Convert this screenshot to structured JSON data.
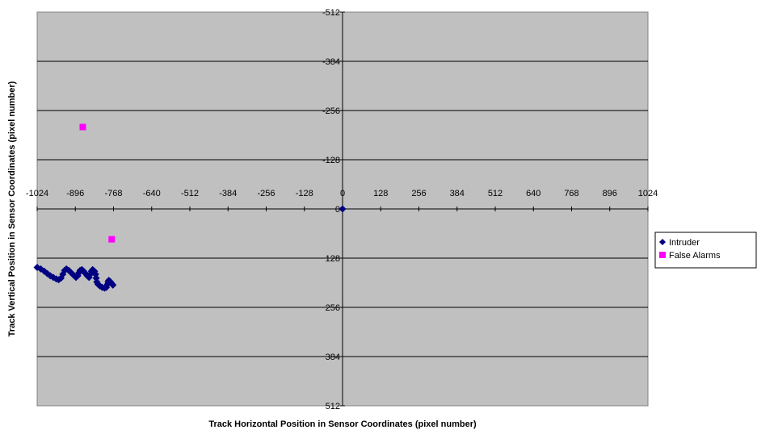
{
  "chart_data": {
    "type": "scatter",
    "xlabel": "Track Horizontal Position in Sensor Coordinates (pixel number)",
    "ylabel": "Track Vertical Position in Sensor Coordinates (pixel number)",
    "xlim": [
      -1024,
      1024
    ],
    "ylim": [
      512,
      -512
    ],
    "y_axis_reversed": true,
    "x_ticks": [
      -1024,
      -896,
      -768,
      -640,
      -512,
      -384,
      -256,
      -128,
      0,
      128,
      256,
      384,
      512,
      640,
      768,
      896,
      1024
    ],
    "y_ticks": [
      -512,
      -384,
      -256,
      -128,
      0,
      128,
      256,
      384,
      512
    ],
    "grid": "horizontal",
    "legend": "right",
    "plot_background": "#c0c0c0",
    "series": [
      {
        "name": "Intruder",
        "marker": "diamond",
        "color": "#000080",
        "points": [
          [
            0,
            0
          ],
          [
            -1024,
            152
          ],
          [
            -1012,
            156
          ],
          [
            -1000,
            162
          ],
          [
            -990,
            168
          ],
          [
            -980,
            174
          ],
          [
            -970,
            178
          ],
          [
            -960,
            182
          ],
          [
            -952,
            184
          ],
          [
            -944,
            180
          ],
          [
            -938,
            170
          ],
          [
            -932,
            160
          ],
          [
            -926,
            156
          ],
          [
            -918,
            160
          ],
          [
            -910,
            166
          ],
          [
            -902,
            172
          ],
          [
            -894,
            178
          ],
          [
            -888,
            174
          ],
          [
            -884,
            166
          ],
          [
            -880,
            160
          ],
          [
            -874,
            158
          ],
          [
            -868,
            162
          ],
          [
            -862,
            168
          ],
          [
            -856,
            174
          ],
          [
            -850,
            178
          ],
          [
            -846,
            170
          ],
          [
            -842,
            162
          ],
          [
            -838,
            158
          ],
          [
            -832,
            162
          ],
          [
            -828,
            170
          ],
          [
            -826,
            180
          ],
          [
            -824,
            190
          ],
          [
            -820,
            196
          ],
          [
            -814,
            200
          ],
          [
            -806,
            204
          ],
          [
            -798,
            206
          ],
          [
            -792,
            204
          ],
          [
            -788,
            196
          ],
          [
            -786,
            190
          ],
          [
            -784,
            186
          ],
          [
            -780,
            188
          ],
          [
            -776,
            192
          ],
          [
            -772,
            196
          ],
          [
            -770,
            198
          ]
        ]
      },
      {
        "name": "False Alarms",
        "marker": "square",
        "color": "#ff00ff",
        "points": [
          [
            -871,
            -213
          ],
          [
            -774,
            79
          ]
        ]
      }
    ]
  }
}
